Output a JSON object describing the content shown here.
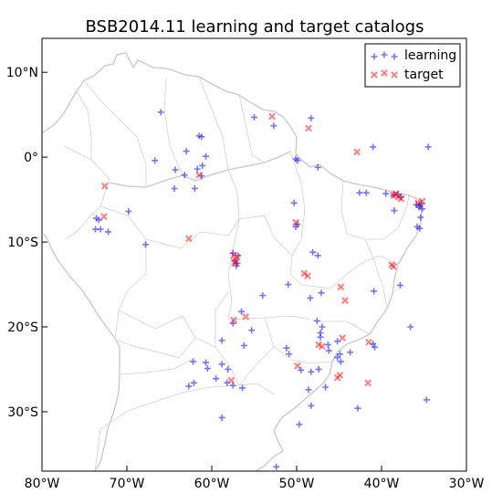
{
  "chart_data": {
    "type": "scatter",
    "title": "BSB2014.11 learning and target catalogs",
    "xlim": [
      -80,
      -30
    ],
    "ylim": [
      -37,
      14
    ],
    "x_ticks": [
      {
        "value": -80,
        "label": "80°W"
      },
      {
        "value": -70,
        "label": "70°W"
      },
      {
        "value": -60,
        "label": "60°W"
      },
      {
        "value": -50,
        "label": "50°W"
      },
      {
        "value": -40,
        "label": "40°W"
      },
      {
        "value": -30,
        "label": "30°W"
      }
    ],
    "y_ticks": [
      {
        "value": 10,
        "label": "10°N"
      },
      {
        "value": 0,
        "label": "0°"
      },
      {
        "value": -10,
        "label": "10°S"
      },
      {
        "value": -20,
        "label": "20°S"
      },
      {
        "value": -30,
        "label": "30°S"
      }
    ],
    "legend_position": "top-right",
    "grid": false,
    "series": [
      {
        "name": "learning",
        "marker": "plus",
        "color": "#0000ff",
        "points": [
          [
            -66,
            5.3
          ],
          [
            -55,
            4.7
          ],
          [
            -52.7,
            3.7
          ],
          [
            -48.3,
            4.6
          ],
          [
            -61.5,
            2.5
          ],
          [
            -61.2,
            2.4
          ],
          [
            -41,
            1.2
          ],
          [
            -34.5,
            1.2
          ],
          [
            -63,
            0.7
          ],
          [
            -60.7,
            0.1
          ],
          [
            -66.7,
            -0.4
          ],
          [
            -50.1,
            -0.2
          ],
          [
            -49.9,
            -0.4
          ],
          [
            -61.1,
            -1
          ],
          [
            -47.5,
            -1.2
          ],
          [
            -61.7,
            -1.4
          ],
          [
            -64.3,
            -1.5
          ],
          [
            -61.2,
            -2.2
          ],
          [
            -63.2,
            -2.1
          ],
          [
            -64.4,
            -3.7
          ],
          [
            -62,
            -3.7
          ],
          [
            -42.6,
            -4.2
          ],
          [
            -41.8,
            -4.2
          ],
          [
            -39.5,
            -4.3
          ],
          [
            -38.6,
            -4.5
          ],
          [
            -38.1,
            -4.4
          ],
          [
            -37.7,
            -4.7
          ],
          [
            -35.9,
            -5.6
          ],
          [
            -35.5,
            -5.7
          ],
          [
            -35.3,
            -5.5
          ],
          [
            -35.6,
            -5.9
          ],
          [
            -35.2,
            -6.1
          ],
          [
            -38.5,
            -6.3
          ],
          [
            -35.4,
            -7.1
          ],
          [
            -35.8,
            -8.2
          ],
          [
            -35.5,
            -8.4
          ],
          [
            -50.3,
            -5.4
          ],
          [
            -69.8,
            -6.4
          ],
          [
            -73.6,
            -7.2
          ],
          [
            -73.3,
            -7.4
          ],
          [
            -73.7,
            -8.5
          ],
          [
            -73.1,
            -8.5
          ],
          [
            -72.2,
            -8.8
          ],
          [
            -50.1,
            -8.2
          ],
          [
            -49.9,
            -7.9
          ],
          [
            -67.8,
            -10.3
          ],
          [
            -57.5,
            -11.3
          ],
          [
            -56.9,
            -11.6
          ],
          [
            -57.3,
            -12.2
          ],
          [
            -57,
            -12.5
          ],
          [
            -57.1,
            -12.8
          ],
          [
            -48.1,
            -11.2
          ],
          [
            -47.5,
            -11.6
          ],
          [
            -51,
            -15
          ],
          [
            -47.1,
            -16
          ],
          [
            -54,
            -16.3
          ],
          [
            -37.8,
            -15.1
          ],
          [
            -40.9,
            -15.8
          ],
          [
            -48.4,
            -16.6
          ],
          [
            -56.5,
            -18.2
          ],
          [
            -57.5,
            -19.6
          ],
          [
            -47.6,
            -19.3
          ],
          [
            -47,
            -20
          ],
          [
            -36.6,
            -20
          ],
          [
            -55.3,
            -20.4
          ],
          [
            -47.2,
            -20.7
          ],
          [
            -47.2,
            -21.2
          ],
          [
            -45.2,
            -21.7
          ],
          [
            -41,
            -22
          ],
          [
            -40.8,
            -22.4
          ],
          [
            -51.2,
            -22.5
          ],
          [
            -50.9,
            -23.2
          ],
          [
            -46.3,
            -22.1
          ],
          [
            -46.2,
            -22.8
          ],
          [
            -44.9,
            -23.2
          ],
          [
            -43.7,
            -23
          ],
          [
            -56.2,
            -22.2
          ],
          [
            -58.8,
            -21.6
          ],
          [
            -45.2,
            -23.6
          ],
          [
            -44.8,
            -24.1
          ],
          [
            -62.2,
            -24.1
          ],
          [
            -60.7,
            -24.2
          ],
          [
            -60.5,
            -24.9
          ],
          [
            -58.8,
            -24.4
          ],
          [
            -58.1,
            -25
          ],
          [
            -49.5,
            -25.1
          ],
          [
            -48.3,
            -25.3
          ],
          [
            -47.4,
            -25
          ],
          [
            -62.1,
            -26.6
          ],
          [
            -59.5,
            -26.1
          ],
          [
            -58.2,
            -26.6
          ],
          [
            -56.4,
            -27.2
          ],
          [
            -57.5,
            -26.9
          ],
          [
            -62.7,
            -27
          ],
          [
            -48.6,
            -27.4
          ],
          [
            -46.6,
            -27.1
          ],
          [
            -34.7,
            -28.6
          ],
          [
            -48.3,
            -29.3
          ],
          [
            -42.8,
            -29.6
          ],
          [
            -49.7,
            -31.5
          ],
          [
            -58.8,
            -30.7
          ],
          [
            -52.4,
            -36.5
          ]
        ]
      },
      {
        "name": "target",
        "marker": "x",
        "color": "#ff0000",
        "points": [
          [
            -52.9,
            4.8
          ],
          [
            -48.6,
            3.4
          ],
          [
            -42.9,
            0.6
          ],
          [
            -61.5,
            -2.1
          ],
          [
            -72.6,
            -3.4
          ],
          [
            -38.6,
            -4.5
          ],
          [
            -38.3,
            -4.3
          ],
          [
            -38,
            -4.7
          ],
          [
            -37.7,
            -4.9
          ],
          [
            -35.7,
            -5.4
          ],
          [
            -35.2,
            -5.2
          ],
          [
            -72.7,
            -7
          ],
          [
            -50.1,
            -7.7
          ],
          [
            -62.7,
            -9.6
          ],
          [
            -57.4,
            -11.6
          ],
          [
            -57,
            -11.8
          ],
          [
            -57.2,
            -12.3
          ],
          [
            -57.3,
            -12.5
          ],
          [
            -38.8,
            -12.7
          ],
          [
            -38.6,
            -12.9
          ],
          [
            -49.1,
            -13.7
          ],
          [
            -48.7,
            -14
          ],
          [
            -44.8,
            -15.3
          ],
          [
            -44.3,
            -16.9
          ],
          [
            -57.4,
            -19.2
          ],
          [
            -56,
            -18.8
          ],
          [
            -47.4,
            -22.1
          ],
          [
            -47,
            -22.3
          ],
          [
            -44.6,
            -21.3
          ],
          [
            -41.5,
            -21.8
          ],
          [
            -49.9,
            -24.6
          ],
          [
            -45.2,
            -26
          ],
          [
            -44.9,
            -25.7
          ],
          [
            -57.7,
            -26.3
          ],
          [
            -41.6,
            -26.6
          ]
        ]
      }
    ]
  }
}
